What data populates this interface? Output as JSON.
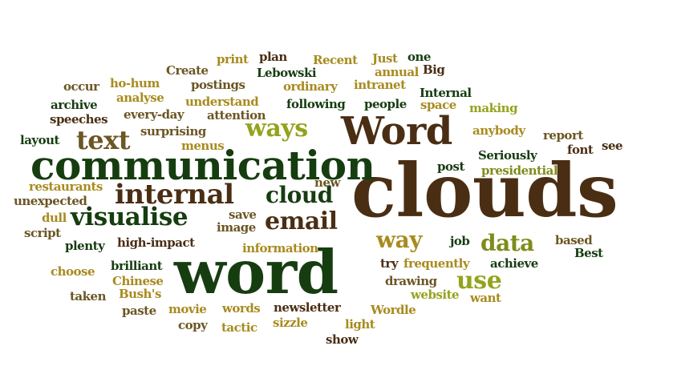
{
  "palette": {
    "dark_brown": "#4a2e14",
    "mid_brown": "#6b5624",
    "gold": "#a88b1f",
    "dark_green": "#163d10",
    "olive": "#7f8c1a",
    "bright_olive": "#94a31d"
  },
  "words": [
    {
      "text": "clouds",
      "color": "#4a2e14"
    },
    {
      "text": "word",
      "color": "#163d10"
    },
    {
      "text": "communication",
      "color": "#163d10"
    },
    {
      "text": "Word",
      "color": "#4a2e14"
    },
    {
      "text": "internal",
      "color": "#4a2e14"
    },
    {
      "text": "visualise",
      "color": "#163d10"
    },
    {
      "text": "text",
      "color": "#6b5624"
    },
    {
      "text": "ways",
      "color": "#94a31d"
    },
    {
      "text": "email",
      "color": "#4a2e14"
    },
    {
      "text": "cloud",
      "color": "#163d10"
    },
    {
      "text": "data",
      "color": "#7f8c1a"
    },
    {
      "text": "way",
      "color": "#a88b1f"
    },
    {
      "text": "use",
      "color": "#94a31d"
    },
    {
      "text": "print",
      "color": "#a88b1f"
    },
    {
      "text": "plan",
      "color": "#4a2e14"
    },
    {
      "text": "Recent",
      "color": "#a88b1f"
    },
    {
      "text": "Just",
      "color": "#a88b1f"
    },
    {
      "text": "one",
      "color": "#163d10"
    },
    {
      "text": "Create",
      "color": "#6b5624"
    },
    {
      "text": "Lebowski",
      "color": "#163d10"
    },
    {
      "text": "annual",
      "color": "#a88b1f"
    },
    {
      "text": "Big",
      "color": "#4a2e14"
    },
    {
      "text": "occur",
      "color": "#6b5624"
    },
    {
      "text": "ho-hum",
      "color": "#a88b1f"
    },
    {
      "text": "postings",
      "color": "#6b5624"
    },
    {
      "text": "ordinary",
      "color": "#a88b1f"
    },
    {
      "text": "intranet",
      "color": "#a88b1f"
    },
    {
      "text": "Internal",
      "color": "#163d10"
    },
    {
      "text": "archive",
      "color": "#163d10"
    },
    {
      "text": "analyse",
      "color": "#a88b1f"
    },
    {
      "text": "understand",
      "color": "#a88b1f"
    },
    {
      "text": "following",
      "color": "#163d10"
    },
    {
      "text": "people",
      "color": "#163d10"
    },
    {
      "text": "space",
      "color": "#a88b1f"
    },
    {
      "text": "making",
      "color": "#94a31d"
    },
    {
      "text": "speeches",
      "color": "#4a2e14"
    },
    {
      "text": "every-day",
      "color": "#6b5624"
    },
    {
      "text": "attention",
      "color": "#6b5624"
    },
    {
      "text": "layout",
      "color": "#163d10"
    },
    {
      "text": "surprising",
      "color": "#6b5624"
    },
    {
      "text": "menus",
      "color": "#a88b1f"
    },
    {
      "text": "anybody",
      "color": "#a88b1f"
    },
    {
      "text": "report",
      "color": "#6b5624"
    },
    {
      "text": "font",
      "color": "#4a2e14"
    },
    {
      "text": "see",
      "color": "#4a2e14"
    },
    {
      "text": "Seriously",
      "color": "#163d10"
    },
    {
      "text": "post",
      "color": "#163d10"
    },
    {
      "text": "presidential",
      "color": "#7f8c1a"
    },
    {
      "text": "new",
      "color": "#6b5624"
    },
    {
      "text": "restaurants",
      "color": "#a88b1f"
    },
    {
      "text": "unexpected",
      "color": "#6b5624"
    },
    {
      "text": "dull",
      "color": "#a88b1f"
    },
    {
      "text": "script",
      "color": "#6b5624"
    },
    {
      "text": "save",
      "color": "#6b5624"
    },
    {
      "text": "image",
      "color": "#6b5624"
    },
    {
      "text": "plenty",
      "color": "#163d10"
    },
    {
      "text": "high-impact",
      "color": "#4a2e14"
    },
    {
      "text": "information",
      "color": "#a88b1f"
    },
    {
      "text": "job",
      "color": "#163d10"
    },
    {
      "text": "based",
      "color": "#6b5624"
    },
    {
      "text": "Best",
      "color": "#163d10"
    },
    {
      "text": "try",
      "color": "#4a2e14"
    },
    {
      "text": "frequently",
      "color": "#a88b1f"
    },
    {
      "text": "achieve",
      "color": "#163d10"
    },
    {
      "text": "choose",
      "color": "#a88b1f"
    },
    {
      "text": "brilliant",
      "color": "#163d10"
    },
    {
      "text": "Chinese",
      "color": "#a88b1f"
    },
    {
      "text": "drawing",
      "color": "#6b5624"
    },
    {
      "text": "taken",
      "color": "#6b5624"
    },
    {
      "text": "Bush's",
      "color": "#a88b1f"
    },
    {
      "text": "website",
      "color": "#94a31d"
    },
    {
      "text": "want",
      "color": "#a88b1f"
    },
    {
      "text": "paste",
      "color": "#6b5624"
    },
    {
      "text": "movie",
      "color": "#a88b1f"
    },
    {
      "text": "words",
      "color": "#a88b1f"
    },
    {
      "text": "newsletter",
      "color": "#4a2e14"
    },
    {
      "text": "Wordle",
      "color": "#a88b1f"
    },
    {
      "text": "copy",
      "color": "#6b5624"
    },
    {
      "text": "tactic",
      "color": "#a88b1f"
    },
    {
      "text": "sizzle",
      "color": "#a88b1f"
    },
    {
      "text": "light",
      "color": "#a88b1f"
    },
    {
      "text": "show",
      "color": "#4a2e14"
    }
  ]
}
